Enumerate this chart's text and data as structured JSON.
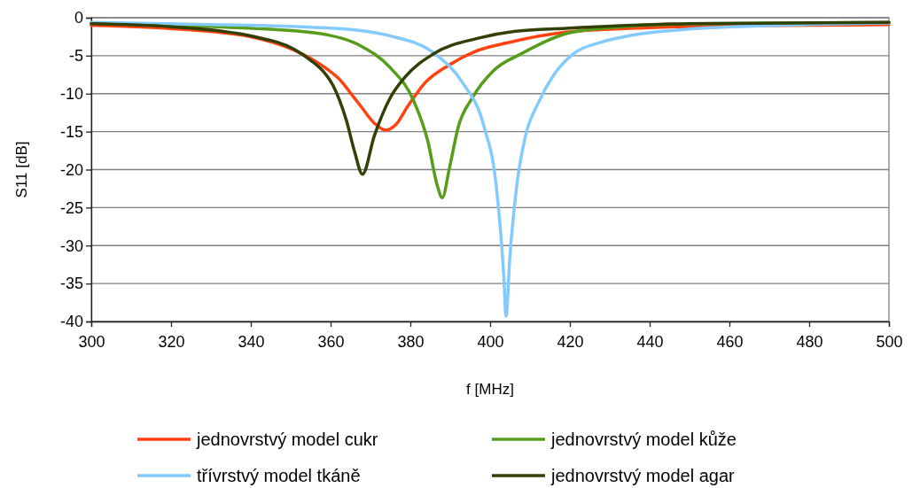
{
  "chart_data": {
    "type": "line",
    "xlabel": "f [MHz]",
    "ylabel": "S11 [dB]",
    "xlim": [
      300,
      500
    ],
    "xticks": [
      300,
      320,
      340,
      360,
      380,
      400,
      420,
      440,
      460,
      480,
      500
    ],
    "ylim": [
      -40,
      0
    ],
    "yticks": [
      -40,
      -35,
      -30,
      -25,
      -20,
      -15,
      -10,
      -5,
      0
    ],
    "grid": "y",
    "legend": "bottom",
    "marker": "none",
    "line_style": "solid",
    "series": [
      {
        "name": "jednovrstvý model cukr",
        "color": "#ff420e",
        "x": [
          300,
          321.6,
          340,
          351,
          358.7,
          362,
          366,
          367.5,
          371,
          373.8,
          376.5,
          379.3,
          383.8,
          389.8,
          396,
          404.4,
          419,
          440,
          460,
          480,
          500
        ],
        "values": [
          -1.0,
          -1.5,
          -2.5,
          -4.3,
          -6.6,
          -8.0,
          -10.6,
          -11.6,
          -13.9,
          -14.8,
          -14.0,
          -11.7,
          -8.5,
          -6.2,
          -4.5,
          -3.3,
          -1.9,
          -1.3,
          -1.1,
          -1.0,
          -0.9
        ]
      },
      {
        "name": "jednovrstvý model kůže",
        "color": "#579d1c",
        "x": [
          300,
          320,
          343.8,
          352.7,
          366,
          367.5,
          375,
          380.8,
          384.4,
          386.7,
          388,
          389.8,
          392,
          395.6,
          400.8,
          408,
          419,
          430,
          450,
          475,
          500
        ],
        "values": [
          -0.7,
          -1.0,
          -1.5,
          -1.8,
          -3.3,
          -3.7,
          -6.6,
          -10.9,
          -16.3,
          -22,
          -23.7,
          -19.8,
          -14.4,
          -10.5,
          -7.0,
          -4.7,
          -2.1,
          -1.3,
          -0.8,
          -0.7,
          -0.6
        ]
      },
      {
        "name": "třívrstvý model tkáně",
        "color": "#83caff",
        "x": [
          300,
          330,
          352.7,
          366,
          375,
          386,
          393,
          398.5,
          401.5,
          403.4,
          404,
          404.9,
          406.7,
          408.9,
          412,
          416,
          421,
          428,
          435.6,
          450,
          472.7,
          500
        ],
        "values": [
          -0.6,
          -0.9,
          -1.2,
          -1.6,
          -2.4,
          -4.7,
          -8.5,
          -14.4,
          -22,
          -33.8,
          -39.3,
          -31.9,
          -22,
          -15.5,
          -11.3,
          -7.5,
          -4.7,
          -3.2,
          -2.3,
          -1.5,
          -1.0,
          -0.7
        ]
      },
      {
        "name": "jednovrstvý model agar",
        "color": "#314004",
        "x": [
          300,
          320,
          340,
          351,
          355,
          358.7,
          360.5,
          362.2,
          364,
          366,
          368,
          371,
          375,
          378.7,
          386,
          397,
          406,
          419,
          450,
          475,
          500
        ],
        "values": [
          -0.8,
          -1.2,
          -2.4,
          -4.2,
          -5.6,
          -7.4,
          -8.8,
          -10.8,
          -13.6,
          -17.6,
          -20.6,
          -15.5,
          -10.5,
          -7.8,
          -4.7,
          -2.7,
          -1.8,
          -1.4,
          -0.8,
          -0.7,
          -0.6
        ]
      }
    ]
  }
}
